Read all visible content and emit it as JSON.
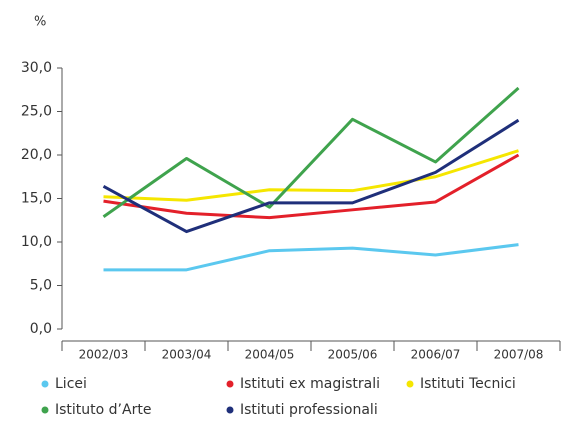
{
  "chart_data": {
    "type": "line",
    "y_label": "%",
    "categories": [
      "2002/03",
      "2003/04",
      "2004/05",
      "2005/06",
      "2006/07",
      "2007/08"
    ],
    "series": [
      {
        "name": "Licei",
        "color": "#5bc8ef",
        "values": [
          6.8,
          6.8,
          9.0,
          9.3,
          8.5,
          9.7
        ]
      },
      {
        "name": "Istituti ex magistrali",
        "color": "#e3202a",
        "values": [
          14.7,
          13.3,
          12.8,
          13.7,
          14.6,
          20.0
        ]
      },
      {
        "name": "Istituti Tecnici",
        "color": "#f5e600",
        "values": [
          15.2,
          14.8,
          16.0,
          15.9,
          17.5,
          20.5
        ]
      },
      {
        "name": "Istituto d’Arte",
        "color": "#3fa34d",
        "values": [
          12.9,
          19.6,
          14.0,
          24.1,
          19.2,
          27.7
        ]
      },
      {
        "name": "Istituti professionali",
        "color": "#1f2f7a",
        "values": [
          16.4,
          11.2,
          14.5,
          14.5,
          18.0,
          24.0
        ]
      }
    ],
    "ylim": [
      0,
      30
    ],
    "yticks": [
      {
        "value": 0,
        "label": "0,0"
      },
      {
        "value": 5,
        "label": "5,0"
      },
      {
        "value": 10,
        "label": "10,0"
      },
      {
        "value": 15,
        "label": "15,0"
      },
      {
        "value": 20,
        "label": "20,0"
      },
      {
        "value": 25,
        "label": "25,0"
      },
      {
        "value": 30,
        "label": "30,0"
      }
    ],
    "grid": false,
    "legend": "bottom"
  }
}
